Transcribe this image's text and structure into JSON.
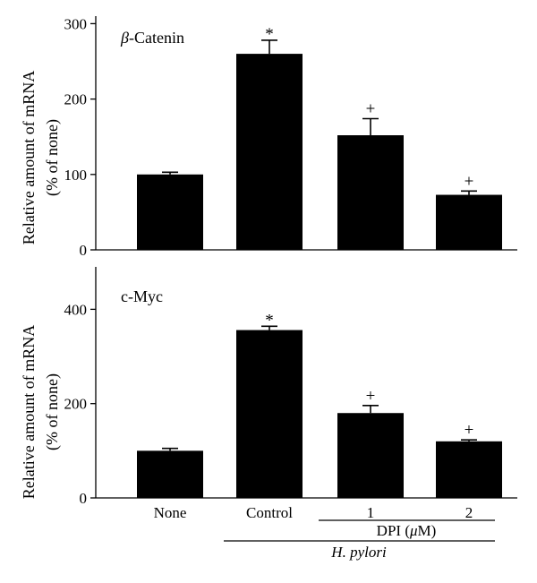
{
  "chart_data": [
    {
      "type": "bar",
      "title": "β-Catenin",
      "title_greek": "β",
      "title_rest": "-Catenin",
      "ylabel_line1": "Relative amount of mRNA",
      "ylabel_line2": "(% of none)",
      "ylim": [
        0,
        310
      ],
      "yticks": [
        0,
        100,
        200,
        300
      ],
      "categories": [
        "None",
        "Control",
        "1",
        "2"
      ],
      "values": [
        100,
        260,
        152,
        73
      ],
      "errors": [
        3,
        18,
        22,
        5
      ],
      "annotations": [
        "",
        "*",
        "+",
        "+"
      ]
    },
    {
      "type": "bar",
      "title": "c-Myc",
      "ylabel_line1": "Relative amount of mRNA",
      "ylabel_line2": "(% of none)",
      "ylim": [
        0,
        490
      ],
      "yticks": [
        0,
        200,
        400
      ],
      "categories": [
        "None",
        "Control",
        "1",
        "2"
      ],
      "values": [
        100,
        356,
        180,
        120
      ],
      "errors": [
        5,
        8,
        16,
        3
      ],
      "annotations": [
        "",
        "*",
        "+",
        "+"
      ]
    }
  ],
  "x_axis": {
    "labels": [
      "None",
      "Control",
      "1",
      "2"
    ],
    "dpi_label_prefix": "DPI (",
    "dpi_label_mu": "μ",
    "dpi_label_suffix": "M)",
    "group_label": "H. pylori"
  },
  "colors": {
    "bar": "#000000",
    "axis": "#000000",
    "background": "#ffffff"
  }
}
